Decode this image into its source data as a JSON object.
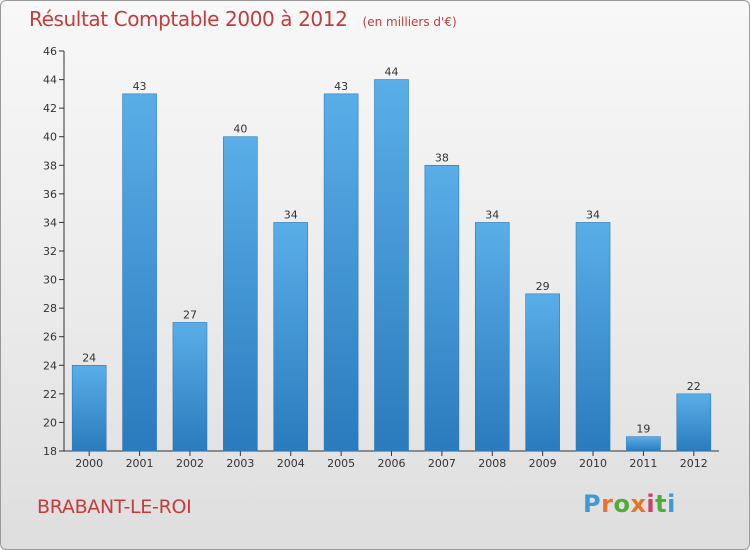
{
  "chart_data": {
    "type": "bar",
    "title": "Résultat Comptable 2000 à 2012",
    "subtitle": "(en milliers d'€)",
    "categories": [
      "2000",
      "2001",
      "2002",
      "2003",
      "2004",
      "2005",
      "2006",
      "2007",
      "2008",
      "2009",
      "2010",
      "2011",
      "2012"
    ],
    "values": [
      24,
      43,
      27,
      40,
      34,
      43,
      44,
      38,
      34,
      29,
      34,
      19,
      22
    ],
    "ylim": [
      18,
      46
    ],
    "yticks": [
      18,
      20,
      22,
      24,
      26,
      28,
      30,
      32,
      34,
      36,
      38,
      40,
      42,
      44,
      46
    ],
    "grid": false,
    "bar_color_top": "#5aaee8",
    "bar_color_bottom": "#2a7bbd"
  },
  "location": "BRABANT-LE-ROI",
  "brand": {
    "text": "Proxiti",
    "letter_colors": [
      "#3d9ad6",
      "#e8742a",
      "#4fae3a",
      "#e8742a",
      "#d13d6b",
      "#4fae3a",
      "#3d9ad6"
    ]
  }
}
